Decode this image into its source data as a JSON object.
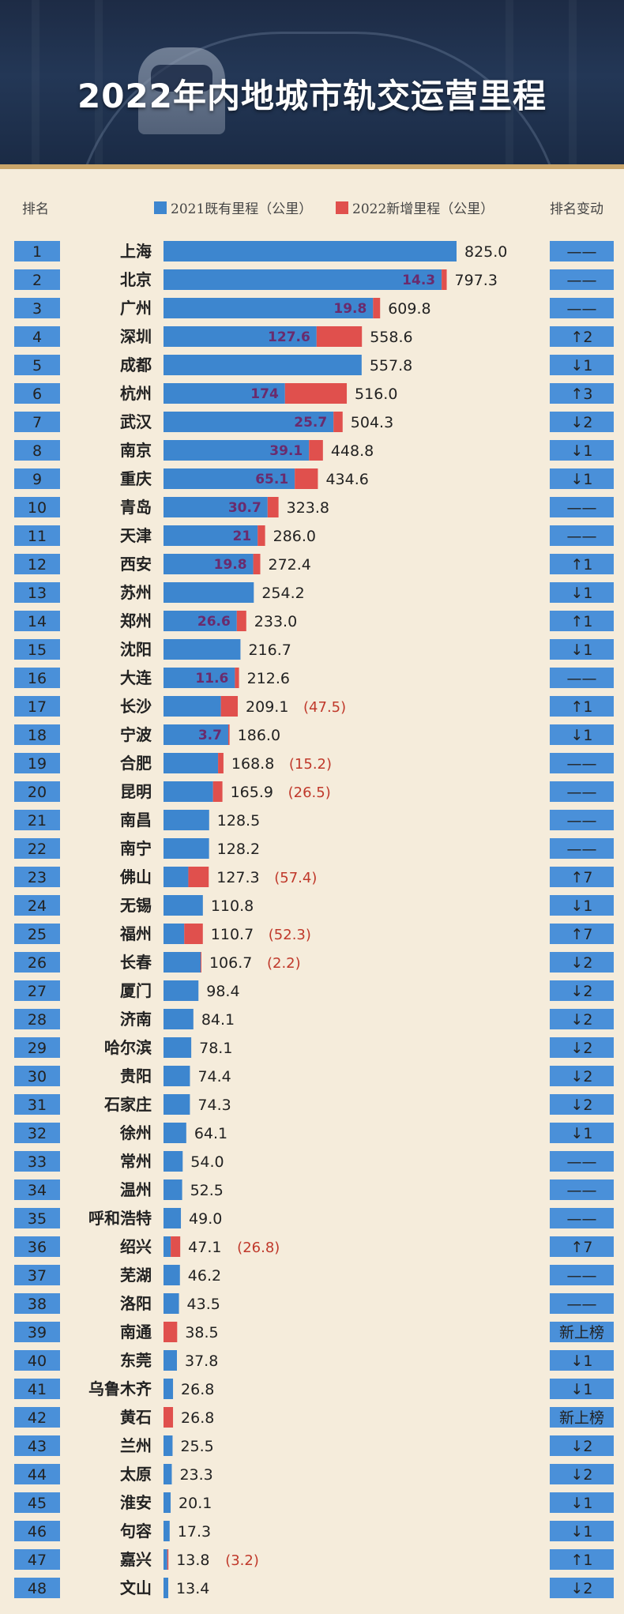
{
  "title": "2022年内地城市轨交运营里程",
  "header": {
    "rank_label": "排名",
    "change_label": "排名变动"
  },
  "legend": [
    {
      "label": "2021既有里程（公里）",
      "color": "#3d86cf"
    },
    {
      "label": "2022新增里程（公里）",
      "color": "#e0504d"
    }
  ],
  "chart_data": {
    "type": "bar",
    "orientation": "horizontal",
    "stacked": true,
    "series": [
      {
        "name": "2021既有里程（公里）",
        "color": "#3d86cf"
      },
      {
        "name": "2022新增里程（公里）",
        "color": "#e0504d"
      }
    ],
    "rows": [
      {
        "rank": "1",
        "city": "上海",
        "total": 825.0,
        "new": null,
        "change": "——"
      },
      {
        "rank": "2",
        "city": "北京",
        "total": 797.3,
        "new": 14.3,
        "change": "——"
      },
      {
        "rank": "3",
        "city": "广州",
        "total": 609.8,
        "new": 19.8,
        "change": "——"
      },
      {
        "rank": "4",
        "city": "深圳",
        "total": 558.6,
        "new": 127.6,
        "change": "↑2"
      },
      {
        "rank": "5",
        "city": "成都",
        "total": 557.8,
        "new": null,
        "change": "↓1"
      },
      {
        "rank": "6",
        "city": "杭州",
        "total": 516.0,
        "new": 174,
        "change": "↑3"
      },
      {
        "rank": "7",
        "city": "武汉",
        "total": 504.3,
        "new": 25.7,
        "change": "↓2"
      },
      {
        "rank": "8",
        "city": "南京",
        "total": 448.8,
        "new": 39.1,
        "change": "↓1"
      },
      {
        "rank": "9",
        "city": "重庆",
        "total": 434.6,
        "new": 65.1,
        "change": "↓1"
      },
      {
        "rank": "10",
        "city": "青岛",
        "total": 323.8,
        "new": 30.7,
        "change": "——"
      },
      {
        "rank": "11",
        "city": "天津",
        "total": 286.0,
        "new": 21,
        "change": "——"
      },
      {
        "rank": "12",
        "city": "西安",
        "total": 272.4,
        "new": 19.8,
        "change": "↑1"
      },
      {
        "rank": "13",
        "city": "苏州",
        "total": 254.2,
        "new": null,
        "change": "↓1"
      },
      {
        "rank": "14",
        "city": "郑州",
        "total": 233.0,
        "new": 26.6,
        "change": "↑1"
      },
      {
        "rank": "15",
        "city": "沈阳",
        "total": 216.7,
        "new": null,
        "change": "↓1"
      },
      {
        "rank": "16",
        "city": "大连",
        "total": 212.6,
        "new": 11.6,
        "change": "——"
      },
      {
        "rank": "17",
        "city": "长沙",
        "total": 209.1,
        "new": 47.5,
        "change": "↑1"
      },
      {
        "rank": "18",
        "city": "宁波",
        "total": 186.0,
        "new": 3.7,
        "change": "↓1"
      },
      {
        "rank": "19",
        "city": "合肥",
        "total": 168.8,
        "new": 15.2,
        "change": "——"
      },
      {
        "rank": "20",
        "city": "昆明",
        "total": 165.9,
        "new": 26.5,
        "change": "——"
      },
      {
        "rank": "21",
        "city": "南昌",
        "total": 128.5,
        "new": null,
        "change": "——"
      },
      {
        "rank": "22",
        "city": "南宁",
        "total": 128.2,
        "new": null,
        "change": "——"
      },
      {
        "rank": "23",
        "city": "佛山",
        "total": 127.3,
        "new": 57.4,
        "change": "↑7"
      },
      {
        "rank": "24",
        "city": "无锡",
        "total": 110.8,
        "new": null,
        "change": "↓1"
      },
      {
        "rank": "25",
        "city": "福州",
        "total": 110.7,
        "new": 52.3,
        "change": "↑7"
      },
      {
        "rank": "26",
        "city": "长春",
        "total": 106.7,
        "new": 2.2,
        "change": "↓2"
      },
      {
        "rank": "27",
        "city": "厦门",
        "total": 98.4,
        "new": null,
        "change": "↓2"
      },
      {
        "rank": "28",
        "city": "济南",
        "total": 84.1,
        "new": null,
        "change": "↓2"
      },
      {
        "rank": "29",
        "city": "哈尔滨",
        "total": 78.1,
        "new": null,
        "change": "↓2"
      },
      {
        "rank": "30",
        "city": "贵阳",
        "total": 74.4,
        "new": null,
        "change": "↓2"
      },
      {
        "rank": "31",
        "city": "石家庄",
        "total": 74.3,
        "new": null,
        "change": "↓2"
      },
      {
        "rank": "32",
        "city": "徐州",
        "total": 64.1,
        "new": null,
        "change": "↓1"
      },
      {
        "rank": "33",
        "city": "常州",
        "total": 54.0,
        "new": null,
        "change": "——"
      },
      {
        "rank": "34",
        "city": "温州",
        "total": 52.5,
        "new": null,
        "change": "——"
      },
      {
        "rank": "35",
        "city": "呼和浩特",
        "total": 49.0,
        "new": null,
        "change": "——"
      },
      {
        "rank": "36",
        "city": "绍兴",
        "total": 47.1,
        "new": 26.8,
        "change": "↑7"
      },
      {
        "rank": "37",
        "city": "芜湖",
        "total": 46.2,
        "new": null,
        "change": "——"
      },
      {
        "rank": "38",
        "city": "洛阳",
        "total": 43.5,
        "new": null,
        "change": "——"
      },
      {
        "rank": "39",
        "city": "南通",
        "total": 38.5,
        "new": 38.5,
        "change": "新上榜"
      },
      {
        "rank": "40",
        "city": "东莞",
        "total": 37.8,
        "new": null,
        "change": "↓1"
      },
      {
        "rank": "41",
        "city": "乌鲁木齐",
        "total": 26.8,
        "new": null,
        "change": "↓1"
      },
      {
        "rank": "42",
        "city": "黄石",
        "total": 26.8,
        "new": 26.8,
        "change": "新上榜"
      },
      {
        "rank": "43",
        "city": "兰州",
        "total": 25.5,
        "new": null,
        "change": "↓2"
      },
      {
        "rank": "44",
        "city": "太原",
        "total": 23.3,
        "new": null,
        "change": "↓2"
      },
      {
        "rank": "45",
        "city": "淮安",
        "total": 20.1,
        "new": null,
        "change": "↓1"
      },
      {
        "rank": "46",
        "city": "句容",
        "total": 17.3,
        "new": null,
        "change": "↓1"
      },
      {
        "rank": "47",
        "city": "嘉兴",
        "total": 13.8,
        "new": 3.2,
        "change": "↑1"
      },
      {
        "rank": "48",
        "city": "文山",
        "total": 13.4,
        "new": null,
        "change": "↓2"
      }
    ]
  }
}
